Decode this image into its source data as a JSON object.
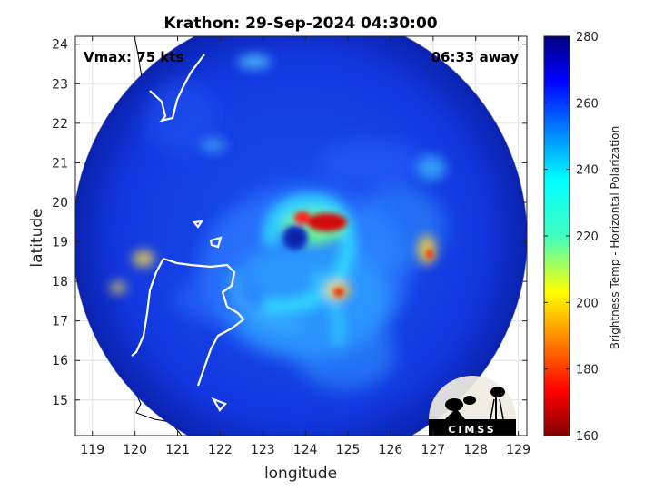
{
  "title": "Krathon: 29-Sep-2024 04:30:00",
  "vmax_label": "Vmax: 75 kts",
  "time_away_label": "06:33 away",
  "x_axis": {
    "label": "longitude",
    "ticks": [
      "119",
      "120",
      "121",
      "122",
      "123",
      "124",
      "125",
      "126",
      "127",
      "128",
      "129"
    ],
    "range": [
      118.6,
      129.2
    ]
  },
  "y_axis": {
    "label": "latitude",
    "ticks": [
      "15",
      "16",
      "17",
      "18",
      "19",
      "20",
      "21",
      "22",
      "23",
      "24"
    ],
    "range": [
      14.1,
      24.2
    ]
  },
  "colorbar": {
    "label": "Brightness Temp - Horizontal Polarization",
    "ticks": [
      "160",
      "180",
      "200",
      "220",
      "240",
      "260",
      "280"
    ],
    "range": [
      160,
      280
    ],
    "colormap": "jet"
  },
  "storm": {
    "name": "Krathon",
    "eye_lon": 123.75,
    "eye_lat": 19.1
  },
  "swath": {
    "center_lon": 123.7,
    "center_lat": 19.1,
    "radius_deg": 5.05
  },
  "logo": {
    "text": "CIMSS"
  },
  "colors": {
    "background_cold": "#1030d8",
    "swath_edge": "#0820a8",
    "coast_line": "#ffffff",
    "map_line": "#000000",
    "grid": "#e0e0e0"
  }
}
